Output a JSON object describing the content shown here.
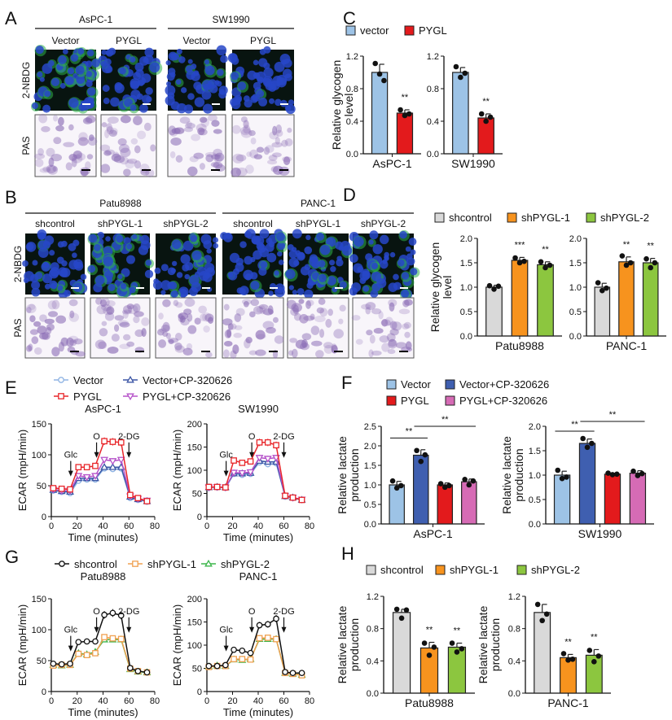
{
  "panel_labels": {
    "A": "A",
    "B": "B",
    "C": "C",
    "D": "D",
    "E": "E",
    "F": "F",
    "G": "G",
    "H": "H"
  },
  "panel_a": {
    "rows": [
      "2-NBDG",
      "PAS"
    ],
    "groups": [
      {
        "name": "AsPC-1",
        "columns": [
          "Vector",
          "PYGL"
        ]
      },
      {
        "name": "SW1990",
        "columns": [
          "Vector",
          "PYGL"
        ]
      }
    ]
  },
  "panel_b": {
    "rows": [
      "2-NBDG",
      "PAS"
    ],
    "groups": [
      {
        "name": "Patu8988",
        "columns": [
          "shcontrol",
          "shPYGL-1",
          "shPYGL-2"
        ]
      },
      {
        "name": "PANC-1",
        "columns": [
          "shcontrol",
          "shPYGL-1",
          "shPYGL-2"
        ]
      }
    ]
  },
  "chart_data": [
    {
      "id": "C",
      "type": "bar",
      "ylabel": "Relative glycogen level",
      "legend": [
        {
          "label": "vector",
          "color": "#9dc3e6"
        },
        {
          "label": "PYGL",
          "color": "#e31a1c"
        }
      ],
      "subplots": [
        {
          "xlabel": "AsPC-1",
          "ylim": [
            0,
            1.2
          ],
          "yticks": [
            "0.0",
            "0.4",
            "0.8",
            "1.2"
          ],
          "bars": [
            {
              "mean": 1.0,
              "err": 0.1,
              "points": [
                1.11,
                0.98,
                0.9
              ]
            },
            {
              "mean": 0.5,
              "err": 0.04,
              "points": [
                0.54,
                0.47,
                0.49
              ],
              "sig": "**"
            }
          ]
        },
        {
          "xlabel": "SW1990",
          "ylim": [
            0,
            1.2
          ],
          "yticks": [
            "0.0",
            "0.4",
            "0.8",
            "1.2"
          ],
          "bars": [
            {
              "mean": 1.0,
              "err": 0.06,
              "points": [
                1.07,
                0.94,
                0.99
              ]
            },
            {
              "mean": 0.44,
              "err": 0.05,
              "points": [
                0.49,
                0.4,
                0.45
              ],
              "sig": "**"
            }
          ]
        }
      ]
    },
    {
      "id": "D",
      "type": "bar",
      "ylabel": "Relative glycogen level",
      "legend": [
        {
          "label": "shcontrol",
          "color": "#d9d9d9"
        },
        {
          "label": "shPYGL-1",
          "color": "#f7931e"
        },
        {
          "label": "shPYGL-2",
          "color": "#8cc63f"
        }
      ],
      "subplots": [
        {
          "xlabel": "Patu8988",
          "ylim": [
            0,
            2.0
          ],
          "yticks": [
            "0.0",
            "0.5",
            "1.0",
            "1.5",
            "2.0"
          ],
          "bars": [
            {
              "mean": 1.0,
              "err": 0.04,
              "points": [
                1.03,
                0.96,
                1.02
              ]
            },
            {
              "mean": 1.55,
              "err": 0.06,
              "points": [
                1.6,
                1.5,
                1.53
              ],
              "sig": "***"
            },
            {
              "mean": 1.46,
              "err": 0.06,
              "points": [
                1.52,
                1.4,
                1.45
              ],
              "sig": "**"
            }
          ]
        },
        {
          "xlabel": "PANC-1",
          "ylim": [
            0,
            2.0
          ],
          "yticks": [
            "0.0",
            "0.5",
            "1.0",
            "1.5",
            "2.0"
          ],
          "bars": [
            {
              "mean": 1.0,
              "err": 0.08,
              "points": [
                1.09,
                0.93,
                0.98
              ]
            },
            {
              "mean": 1.52,
              "err": 0.1,
              "points": [
                1.64,
                1.45,
                1.5
              ],
              "sig": "**"
            },
            {
              "mean": 1.5,
              "err": 0.09,
              "points": [
                1.58,
                1.4,
                1.5
              ],
              "sig": "**"
            }
          ]
        }
      ]
    },
    {
      "id": "E",
      "type": "line",
      "xlabel": "Time (minutes)",
      "ylabel": "ECAR (mpH/min)",
      "x": [
        1.5,
        8,
        14.5,
        21,
        27.5,
        34,
        41,
        47.5,
        54,
        61,
        67,
        74
      ],
      "xlim": [
        0,
        80
      ],
      "xticks": [
        "0",
        "20",
        "40",
        "60",
        "80"
      ],
      "annotations": [
        {
          "label": "Glc",
          "x": 15
        },
        {
          "label": "O",
          "x": 35
        },
        {
          "label": "2-DG",
          "x": 60
        }
      ],
      "legend": [
        {
          "label": "Vector",
          "color": "#8fb4e3",
          "marker": "circle"
        },
        {
          "label": "Vector+CP-320626",
          "color": "#3b55a5",
          "marker": "triangle-up"
        },
        {
          "label": "PYGL",
          "color": "#e8262a",
          "marker": "square"
        },
        {
          "label": "PYGL+CP-320626",
          "color": "#b552c9",
          "marker": "triangle-down"
        }
      ],
      "subplots": [
        {
          "title": "AsPC-1",
          "ylim": [
            0,
            150
          ],
          "yticks": [
            "0",
            "50",
            "100",
            "150"
          ],
          "series": [
            {
              "name": "Vector",
              "values": [
                42,
                40,
                38,
                58,
                60,
                60,
                78,
                77,
                78,
                30,
                27,
                24
              ]
            },
            {
              "name": "Vector+CP-320626",
              "values": [
                43,
                41,
                40,
                62,
                62,
                62,
                80,
                80,
                80,
                32,
                28,
                25
              ]
            },
            {
              "name": "PYGL+CP-320626",
              "values": [
                44,
                42,
                42,
                66,
                64,
                66,
                92,
                90,
                92,
                33,
                29,
                26
              ]
            },
            {
              "name": "PYGL",
              "values": [
                46,
                45,
                44,
                80,
                80,
                82,
                122,
                121,
                120,
                35,
                30,
                25
              ]
            }
          ]
        },
        {
          "title": "SW1990",
          "ylim": [
            0,
            200
          ],
          "yticks": [
            "0",
            "50",
            "100",
            "150",
            "200"
          ],
          "series": [
            {
              "name": "Vector",
              "values": [
                62,
                63,
                62,
                92,
                90,
                92,
                117,
                113,
                115,
                43,
                40,
                36
              ]
            },
            {
              "name": "Vector+CP-320626",
              "values": [
                63,
                64,
                63,
                93,
                93,
                94,
                120,
                118,
                118,
                44,
                41,
                36
              ]
            },
            {
              "name": "PYGL+CP-320626",
              "values": [
                63,
                64,
                63,
                95,
                94,
                96,
                127,
                125,
                127,
                45,
                41,
                37
              ]
            },
            {
              "name": "PYGL",
              "values": [
                64,
                64,
                63,
                121,
                116,
                119,
                160,
                160,
                154,
                45,
                41,
                36
              ]
            }
          ]
        }
      ]
    },
    {
      "id": "F",
      "type": "bar",
      "ylabel": "Relative lactate production",
      "legend": [
        {
          "label": "Vector",
          "color": "#9dc3e6"
        },
        {
          "label": "Vector+CP-320626",
          "color": "#3f5fb0"
        },
        {
          "label": "PYGL",
          "color": "#e31a1c"
        },
        {
          "label": "PYGL+CP-320626",
          "color": "#d66bb5"
        }
      ],
      "subplots": [
        {
          "xlabel": "AsPC-1",
          "ylim": [
            0,
            2.5
          ],
          "yticks": [
            "0.0",
            "0.5",
            "1.0",
            "1.5",
            "2.0",
            "2.5"
          ],
          "bars": [
            {
              "mean": 1.0,
              "err": 0.09,
              "points": [
                1.1,
                0.92,
                0.98
              ]
            },
            {
              "mean": 1.76,
              "err": 0.14,
              "points": [
                1.88,
                1.6,
                1.77
              ]
            },
            {
              "mean": 1.0,
              "err": 0.05,
              "points": [
                1.03,
                0.94,
                0.98
              ]
            },
            {
              "mean": 1.08,
              "err": 0.07,
              "points": [
                1.14,
                1.0,
                1.1
              ]
            }
          ],
          "brackets": [
            {
              "from": 0,
              "to": 1,
              "y": 2.2,
              "label": "**"
            },
            {
              "from": 1,
              "to": 3,
              "y": 2.5,
              "label": "**"
            }
          ]
        },
        {
          "xlabel": "SW1990",
          "ylim": [
            0,
            2.0
          ],
          "yticks": [
            "0.0",
            "0.5",
            "1.0",
            "1.5",
            "2.0"
          ],
          "bars": [
            {
              "mean": 1.0,
              "err": 0.08,
              "points": [
                1.1,
                0.93,
                0.96
              ]
            },
            {
              "mean": 1.65,
              "err": 0.09,
              "points": [
                1.75,
                1.57,
                1.65
              ]
            },
            {
              "mean": 1.02,
              "err": 0.02,
              "points": [
                1.04,
                1.01,
                1.02
              ]
            },
            {
              "mean": 1.04,
              "err": 0.05,
              "points": [
                1.08,
                0.99,
                1.03
              ]
            }
          ],
          "brackets": [
            {
              "from": 0,
              "to": 1,
              "y": 1.9,
              "label": "**"
            },
            {
              "from": 1,
              "to": 3,
              "y": 2.1,
              "label": "**"
            }
          ]
        }
      ]
    },
    {
      "id": "G",
      "type": "line",
      "xlabel": "Time (minutes)",
      "ylabel": "ECAR (mpH/min)",
      "x": [
        1.5,
        8,
        14.5,
        21,
        27.5,
        34,
        41,
        47.5,
        54,
        61,
        67,
        74
      ],
      "xlim": [
        0,
        80
      ],
      "xticks": [
        "0",
        "20",
        "40",
        "60",
        "80"
      ],
      "annotations": [
        {
          "label": "Glc",
          "x": 15
        },
        {
          "label": "O",
          "x": 35
        },
        {
          "label": "2-DG",
          "x": 60
        }
      ],
      "legend": [
        {
          "label": "shcontrol",
          "color": "#111111",
          "marker": "circle"
        },
        {
          "label": "shPYGL-1",
          "color": "#f0a050",
          "marker": "square"
        },
        {
          "label": "shPYGL-2",
          "color": "#3bb54a",
          "marker": "triangle-up"
        }
      ],
      "subplots": [
        {
          "title": "Patu8988",
          "ylim": [
            0,
            150
          ],
          "yticks": [
            "0",
            "50",
            "100",
            "150"
          ],
          "series": [
            {
              "name": "shPYGL-2",
              "values": [
                43,
                42,
                43,
                62,
                60,
                64,
                84,
                84,
                84,
                36,
                32,
                31
              ]
            },
            {
              "name": "shPYGL-1",
              "values": [
                42,
                43,
                43,
                61,
                59,
                62,
                88,
                86,
                85,
                37,
                33,
                31
              ]
            },
            {
              "name": "shcontrol",
              "values": [
                45,
                44,
                45,
                80,
                81,
                81,
                124,
                127,
                123,
                38,
                33,
                31
              ]
            }
          ]
        },
        {
          "title": "PANC-1",
          "ylim": [
            0,
            200
          ],
          "yticks": [
            "0",
            "50",
            "100",
            "150",
            "200"
          ],
          "series": [
            {
              "name": "shPYGL-2",
              "values": [
                54,
                56,
                55,
                69,
                68,
                70,
                113,
                113,
                113,
                40,
                38,
                36
              ]
            },
            {
              "name": "shPYGL-1",
              "values": [
                53,
                55,
                55,
                70,
                70,
                69,
                115,
                116,
                113,
                40,
                38,
                35
              ]
            },
            {
              "name": "shcontrol",
              "values": [
                55,
                55,
                57,
                90,
                88,
                83,
                143,
                145,
                157,
                42,
                40,
                40
              ]
            }
          ]
        }
      ]
    },
    {
      "id": "H",
      "type": "bar",
      "ylabel": "Relative lactate production",
      "legend": [
        {
          "label": "shcontrol",
          "color": "#d9d9d9"
        },
        {
          "label": "shPYGL-1",
          "color": "#f7931e"
        },
        {
          "label": "shPYGL-2",
          "color": "#8cc63f"
        }
      ],
      "subplots": [
        {
          "xlabel": "Patu8988",
          "ylim": [
            0,
            1.2
          ],
          "yticks": [
            "0.0",
            "0.4",
            "0.8",
            "1.2"
          ],
          "bars": [
            {
              "mean": 1.0,
              "err": 0.04,
              "points": [
                1.04,
                0.93,
                1.03
              ]
            },
            {
              "mean": 0.56,
              "err": 0.07,
              "points": [
                0.62,
                0.47,
                0.57
              ],
              "sig": "**"
            },
            {
              "mean": 0.57,
              "err": 0.05,
              "points": [
                0.62,
                0.51,
                0.55
              ],
              "sig": "**"
            }
          ]
        },
        {
          "xlabel": "PANC-1",
          "ylim": [
            0,
            1.2
          ],
          "yticks": [
            "0.0",
            "0.4",
            "0.8",
            "1.2"
          ],
          "bars": [
            {
              "mean": 1.0,
              "err": 0.1,
              "points": [
                1.1,
                0.9,
                0.98
              ]
            },
            {
              "mean": 0.44,
              "err": 0.04,
              "points": [
                0.49,
                0.41,
                0.42
              ],
              "sig": "**"
            },
            {
              "mean": 0.47,
              "err": 0.07,
              "points": [
                0.53,
                0.39,
                0.46
              ],
              "sig": "**"
            }
          ]
        }
      ]
    }
  ]
}
